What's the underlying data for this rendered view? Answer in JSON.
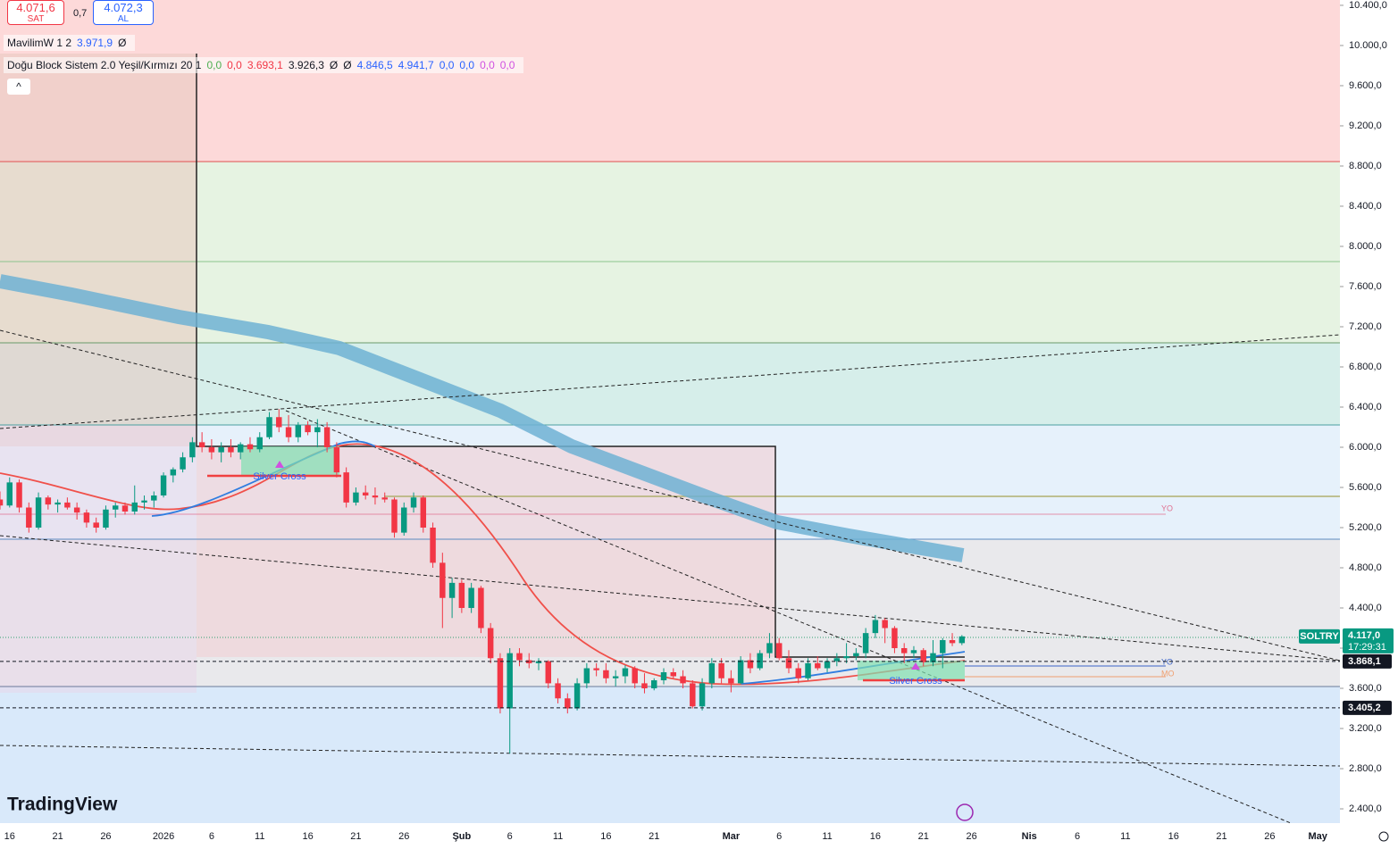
{
  "toolbar": {
    "sell_price": "4.071,6",
    "sell_label": "SAT",
    "spread": "0,7",
    "buy_price": "4.072,3",
    "buy_label": "AL"
  },
  "indicators": [
    {
      "name": "MavilimW 1 2",
      "values": [
        "3.971,9",
        "Ø"
      ]
    },
    {
      "name": "Doğu Block Sistem 2.0 Yeşil/Kırmızı 20 1",
      "values": [
        "0,0",
        "0,0",
        "3.693,1",
        "3.926,3",
        "Ø",
        "Ø",
        "4.846,5",
        "4.941,7",
        "0,0",
        "0,0",
        "0,0",
        "0,0"
      ]
    }
  ],
  "annotations": [
    "Silver Cross",
    "Silver Cross",
    "YO",
    "YO",
    "MO"
  ],
  "logo": "TradingView",
  "chart_data": {
    "type": "candlestick",
    "symbol": "SOLTRY",
    "colors": {
      "up": "#089981",
      "down": "#f23645"
    },
    "candles": [
      [
        5480,
        5560,
        5380,
        5420
      ],
      [
        5420,
        5700,
        5400,
        5650
      ],
      [
        5650,
        5680,
        5350,
        5400
      ],
      [
        5400,
        5450,
        5150,
        5200
      ],
      [
        5200,
        5550,
        5180,
        5500
      ],
      [
        5500,
        5520,
        5380,
        5430
      ],
      [
        5430,
        5480,
        5350,
        5450
      ],
      [
        5450,
        5500,
        5380,
        5400
      ],
      [
        5400,
        5450,
        5280,
        5350
      ],
      [
        5350,
        5380,
        5200,
        5250
      ],
      [
        5250,
        5300,
        5150,
        5200
      ],
      [
        5200,
        5420,
        5180,
        5380
      ],
      [
        5380,
        5450,
        5300,
        5420
      ],
      [
        5420,
        5450,
        5330,
        5360
      ],
      [
        5360,
        5620,
        5330,
        5450
      ],
      [
        5450,
        5520,
        5380,
        5470
      ],
      [
        5470,
        5560,
        5400,
        5520
      ],
      [
        5520,
        5750,
        5500,
        5720
      ],
      [
        5720,
        5800,
        5650,
        5780
      ],
      [
        5780,
        5950,
        5750,
        5900
      ],
      [
        5900,
        6100,
        5850,
        6050
      ],
      [
        6050,
        6150,
        5950,
        6000
      ],
      [
        6000,
        6080,
        5880,
        5950
      ],
      [
        5950,
        6050,
        5850,
        6000
      ],
      [
        6000,
        6080,
        5900,
        5950
      ],
      [
        5950,
        6050,
        5880,
        6030
      ],
      [
        6030,
        6100,
        5950,
        5980
      ],
      [
        5980,
        6150,
        5950,
        6100
      ],
      [
        6100,
        6350,
        6080,
        6300
      ],
      [
        6300,
        6380,
        6150,
        6200
      ],
      [
        6200,
        6320,
        6050,
        6100
      ],
      [
        6100,
        6250,
        6050,
        6220
      ],
      [
        6220,
        6260,
        6120,
        6150
      ],
      [
        6150,
        6280,
        6000,
        6200
      ],
      [
        6200,
        6250,
        5950,
        6000
      ],
      [
        6000,
        6050,
        5700,
        5750
      ],
      [
        5750,
        5800,
        5400,
        5450
      ],
      [
        5450,
        5600,
        5420,
        5550
      ],
      [
        5550,
        5620,
        5480,
        5520
      ],
      [
        5520,
        5600,
        5430,
        5500
      ],
      [
        5500,
        5550,
        5450,
        5480
      ],
      [
        5480,
        5500,
        5100,
        5150
      ],
      [
        5150,
        5450,
        5120,
        5400
      ],
      [
        5400,
        5550,
        5350,
        5500
      ],
      [
        5500,
        5520,
        5150,
        5200
      ],
      [
        5200,
        5250,
        4800,
        4850
      ],
      [
        4850,
        4950,
        4200,
        4500
      ],
      [
        4500,
        4700,
        4300,
        4650
      ],
      [
        4650,
        4680,
        4350,
        4400
      ],
      [
        4400,
        4650,
        4350,
        4600
      ],
      [
        4600,
        4620,
        4150,
        4200
      ],
      [
        4200,
        4250,
        3850,
        3900
      ],
      [
        3900,
        3950,
        3350,
        3400
      ],
      [
        3400,
        4000,
        2950,
        3950
      ],
      [
        3950,
        4000,
        3820,
        3880
      ],
      [
        3880,
        3950,
        3800,
        3850
      ],
      [
        3850,
        3900,
        3780,
        3870
      ],
      [
        3870,
        3880,
        3600,
        3650
      ],
      [
        3650,
        3700,
        3450,
        3500
      ],
      [
        3500,
        3550,
        3350,
        3400
      ],
      [
        3400,
        3700,
        3380,
        3650
      ],
      [
        3650,
        3850,
        3600,
        3800
      ],
      [
        3800,
        3850,
        3720,
        3780
      ],
      [
        3780,
        3850,
        3650,
        3700
      ],
      [
        3700,
        3780,
        3620,
        3720
      ],
      [
        3720,
        3830,
        3650,
        3800
      ],
      [
        3800,
        3820,
        3600,
        3650
      ],
      [
        3650,
        3750,
        3550,
        3600
      ],
      [
        3600,
        3700,
        3580,
        3680
      ],
      [
        3680,
        3800,
        3640,
        3760
      ],
      [
        3760,
        3800,
        3700,
        3720
      ],
      [
        3720,
        3780,
        3600,
        3650
      ],
      [
        3650,
        3680,
        3400,
        3420
      ],
      [
        3420,
        3700,
        3380,
        3650
      ],
      [
        3650,
        3900,
        3600,
        3850
      ],
      [
        3850,
        3900,
        3650,
        3700
      ],
      [
        3700,
        3780,
        3560,
        3650
      ],
      [
        3650,
        3920,
        3640,
        3880
      ],
      [
        3880,
        3950,
        3750,
        3800
      ],
      [
        3800,
        3980,
        3780,
        3950
      ],
      [
        3950,
        4150,
        3900,
        4050
      ],
      [
        4050,
        4100,
        3880,
        3900
      ],
      [
        3900,
        3980,
        3750,
        3800
      ],
      [
        3800,
        3850,
        3650,
        3700
      ],
      [
        3700,
        3900,
        3680,
        3850
      ],
      [
        3850,
        3920,
        3780,
        3800
      ],
      [
        3800,
        3900,
        3760,
        3870
      ],
      [
        3870,
        3950,
        3820,
        3900
      ],
      [
        3900,
        4050,
        3850,
        3920
      ],
      [
        3920,
        4000,
        3880,
        3950
      ],
      [
        3950,
        4200,
        3900,
        4150
      ],
      [
        4150,
        4330,
        4100,
        4280
      ],
      [
        4280,
        4300,
        4050,
        4200
      ],
      [
        4200,
        4220,
        3950,
        4000
      ],
      [
        4000,
        4050,
        3850,
        3950
      ],
      [
        3950,
        4020,
        3900,
        3980
      ],
      [
        3980,
        4000,
        3820,
        3860
      ],
      [
        3860,
        4080,
        3820,
        3950
      ],
      [
        3950,
        4100,
        3800,
        4080
      ],
      [
        4080,
        4150,
        4020,
        4050
      ],
      [
        4050,
        4130,
        4030,
        4117
      ]
    ],
    "xlim": [
      0,
      139.3
    ],
    "xticks": [
      {
        "value": 1,
        "label": "16"
      },
      {
        "value": 6,
        "label": "21"
      },
      {
        "value": 11,
        "label": "26"
      },
      {
        "value": 17,
        "label": "2026"
      },
      {
        "value": 22,
        "label": "6"
      },
      {
        "value": 27,
        "label": "11"
      },
      {
        "value": 32,
        "label": "16"
      },
      {
        "value": 37,
        "label": "21"
      },
      {
        "value": 42,
        "label": "26"
      },
      {
        "value": 48,
        "label": "Şub"
      },
      {
        "value": 53,
        "label": "6"
      },
      {
        "value": 58,
        "label": "11"
      },
      {
        "value": 63,
        "label": "16"
      },
      {
        "value": 68,
        "label": "21"
      },
      {
        "value": 76,
        "label": "Mar"
      },
      {
        "value": 81,
        "label": "6"
      },
      {
        "value": 86,
        "label": "11"
      },
      {
        "value": 91,
        "label": "16"
      },
      {
        "value": 96,
        "label": "21"
      },
      {
        "value": 101,
        "label": "26"
      },
      {
        "value": 107,
        "label": "Nis"
      },
      {
        "value": 112,
        "label": "6"
      },
      {
        "value": 117,
        "label": "11"
      },
      {
        "value": 122,
        "label": "16"
      },
      {
        "value": 127,
        "label": "21"
      },
      {
        "value": 132,
        "label": "26"
      },
      {
        "value": 137,
        "label": "May"
      }
    ],
    "ylim": [
      2258,
      10453
    ],
    "yticks": [
      {
        "value": 10400,
        "label": "10.400,0"
      },
      {
        "value": 10000,
        "label": "10.000,0"
      },
      {
        "value": 9600,
        "label": "9.600,0"
      },
      {
        "value": 9200,
        "label": "9.200,0"
      },
      {
        "value": 8800,
        "label": "8.800,0"
      },
      {
        "value": 8400,
        "label": "8.400,0"
      },
      {
        "value": 8000,
        "label": "8.000,0"
      },
      {
        "value": 7600,
        "label": "7.600,0"
      },
      {
        "value": 7200,
        "label": "7.200,0"
      },
      {
        "value": 6800,
        "label": "6.800,0"
      },
      {
        "value": 6400,
        "label": "6.400,0"
      },
      {
        "value": 6000,
        "label": "6.000,0"
      },
      {
        "value": 5600,
        "label": "5.600,0"
      },
      {
        "value": 5200,
        "label": "5.200,0"
      },
      {
        "value": 4800,
        "label": "4.800,0"
      },
      {
        "value": 4400,
        "label": "4.400,0"
      },
      {
        "value": 4000,
        "label": "4.000,0"
      },
      {
        "value": 3600,
        "label": "3.600,0"
      },
      {
        "value": 3200,
        "label": "3.200,0"
      },
      {
        "value": 2800,
        "label": "2.800,0"
      },
      {
        "value": 2400,
        "label": "2.400,0"
      }
    ],
    "last_price": {
      "value": 4117,
      "label": "4.117,0",
      "countdown": "17:29:31"
    },
    "levels": [
      {
        "value": 3868.1,
        "label": "3.868,1"
      },
      {
        "value": 3405.2,
        "label": "3.405,2"
      }
    ]
  }
}
